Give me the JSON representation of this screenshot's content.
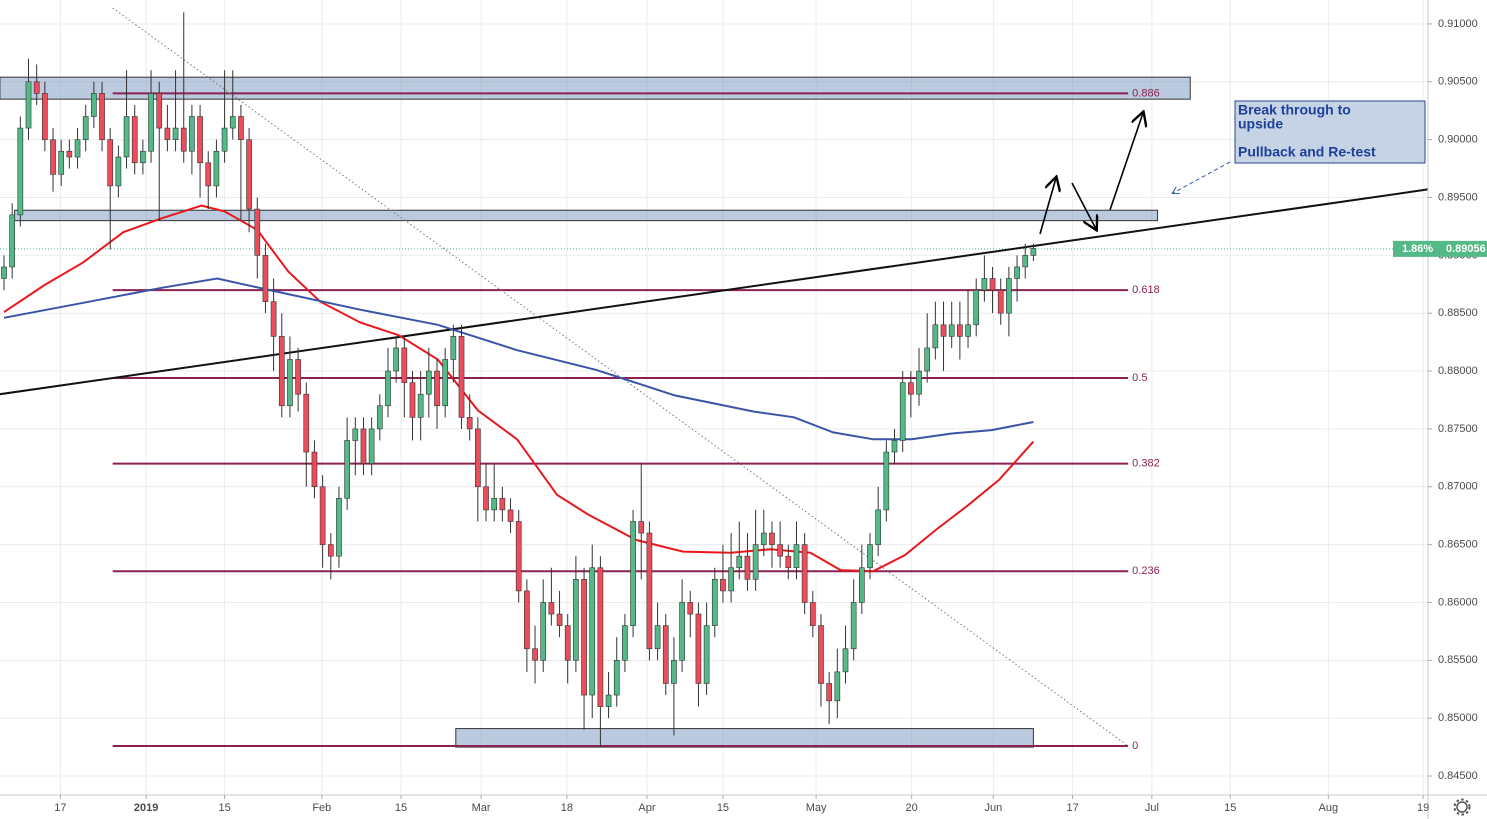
{
  "chart_data": {
    "type": "candlestick",
    "xlim": [
      -0.49,
      174.3
    ],
    "ylim": [
      0.84336,
      0.91207
    ],
    "grid": true,
    "up_color": "#53b987",
    "down_color": "#eb4d5c",
    "xticks": [
      {
        "value": 6.9,
        "label": "17"
      },
      {
        "value": 17.4,
        "label": "2019"
      },
      {
        "value": 27.0,
        "label": "15"
      },
      {
        "value": 38.9,
        "label": "Feb"
      },
      {
        "value": 48.6,
        "label": "15"
      },
      {
        "value": 58.4,
        "label": "Mar"
      },
      {
        "value": 68.9,
        "label": "18"
      },
      {
        "value": 78.7,
        "label": "Apr"
      },
      {
        "value": 88.0,
        "label": "15"
      },
      {
        "value": 99.4,
        "label": "May"
      },
      {
        "value": 111.1,
        "label": "20"
      },
      {
        "value": 121.1,
        "label": "Jun"
      },
      {
        "value": 130.8,
        "label": "17"
      },
      {
        "value": 140.5,
        "label": "Jul"
      },
      {
        "value": 150.1,
        "label": "15"
      },
      {
        "value": 162.1,
        "label": "Aug"
      },
      {
        "value": 173.7,
        "label": "19"
      }
    ],
    "yticks": [
      {
        "value": 0.91,
        "label": "0.91000"
      },
      {
        "value": 0.905,
        "label": "0.90500"
      },
      {
        "value": 0.9,
        "label": "0.90000"
      },
      {
        "value": 0.895,
        "label": "0.89500"
      },
      {
        "value": 0.89,
        "label": "0.89000"
      },
      {
        "value": 0.885,
        "label": "0.88500"
      },
      {
        "value": 0.88,
        "label": "0.88000"
      },
      {
        "value": 0.875,
        "label": "0.87500"
      },
      {
        "value": 0.87,
        "label": "0.87000"
      },
      {
        "value": 0.865,
        "label": "0.86500"
      },
      {
        "value": 0.86,
        "label": "0.86000"
      },
      {
        "value": 0.855,
        "label": "0.85500"
      },
      {
        "value": 0.85,
        "label": "0.85000"
      },
      {
        "value": 0.845,
        "label": "0.84500"
      }
    ],
    "candles": [
      [
        0.888,
        0.89,
        0.887,
        0.889
      ],
      [
        0.889,
        0.8945,
        0.888,
        0.8935
      ],
      [
        0.8935,
        0.902,
        0.8925,
        0.901
      ],
      [
        0.901,
        0.907,
        0.9,
        0.905
      ],
      [
        0.905,
        0.9065,
        0.903,
        0.904
      ],
      [
        0.904,
        0.905,
        0.899,
        0.9
      ],
      [
        0.9,
        0.901,
        0.8955,
        0.897
      ],
      [
        0.897,
        0.9,
        0.896,
        0.899
      ],
      [
        0.899,
        0.9,
        0.8975,
        0.8985
      ],
      [
        0.8985,
        0.901,
        0.8975,
        0.9
      ],
      [
        0.9,
        0.903,
        0.899,
        0.902
      ],
      [
        0.902,
        0.905,
        0.901,
        0.904
      ],
      [
        0.904,
        0.905,
        0.899,
        0.9
      ],
      [
        0.9,
        0.901,
        0.8905,
        0.896
      ],
      [
        0.896,
        0.8995,
        0.895,
        0.8985
      ],
      [
        0.8985,
        0.906,
        0.8975,
        0.902
      ],
      [
        0.902,
        0.903,
        0.897,
        0.898
      ],
      [
        0.898,
        0.9,
        0.897,
        0.899
      ],
      [
        0.899,
        0.906,
        0.898,
        0.904
      ],
      [
        0.904,
        0.905,
        0.893,
        0.901
      ],
      [
        0.901,
        0.903,
        0.899,
        0.9
      ],
      [
        0.9,
        0.906,
        0.899,
        0.901
      ],
      [
        0.901,
        0.911,
        0.898,
        0.899
      ],
      [
        0.899,
        0.903,
        0.897,
        0.902
      ],
      [
        0.902,
        0.903,
        0.895,
        0.898
      ],
      [
        0.898,
        0.899,
        0.894,
        0.896
      ],
      [
        0.896,
        0.9,
        0.895,
        0.899
      ],
      [
        0.899,
        0.906,
        0.898,
        0.901
      ],
      [
        0.901,
        0.906,
        0.9,
        0.902
      ],
      [
        0.902,
        0.903,
        0.893,
        0.9
      ],
      [
        0.9,
        0.901,
        0.892,
        0.894
      ],
      [
        0.894,
        0.895,
        0.888,
        0.89
      ],
      [
        0.89,
        0.891,
        0.885,
        0.886
      ],
      [
        0.886,
        0.888,
        0.88,
        0.883
      ],
      [
        0.883,
        0.885,
        0.876,
        0.877
      ],
      [
        0.877,
        0.883,
        0.876,
        0.881
      ],
      [
        0.881,
        0.882,
        0.8765,
        0.878
      ],
      [
        0.878,
        0.879,
        0.87,
        0.873
      ],
      [
        0.873,
        0.874,
        0.869,
        0.87
      ],
      [
        0.87,
        0.871,
        0.863,
        0.865
      ],
      [
        0.865,
        0.866,
        0.862,
        0.864
      ],
      [
        0.864,
        0.87,
        0.863,
        0.869
      ],
      [
        0.869,
        0.876,
        0.868,
        0.874
      ],
      [
        0.874,
        0.876,
        0.871,
        0.875
      ],
      [
        0.875,
        0.876,
        0.871,
        0.872
      ],
      [
        0.872,
        0.876,
        0.871,
        0.875
      ],
      [
        0.875,
        0.878,
        0.874,
        0.877
      ],
      [
        0.877,
        0.882,
        0.876,
        0.88
      ],
      [
        0.88,
        0.883,
        0.879,
        0.882
      ],
      [
        0.882,
        0.883,
        0.876,
        0.879
      ],
      [
        0.879,
        0.88,
        0.874,
        0.876
      ],
      [
        0.876,
        0.88,
        0.874,
        0.878
      ],
      [
        0.878,
        0.882,
        0.876,
        0.88
      ],
      [
        0.88,
        0.881,
        0.875,
        0.877
      ],
      [
        0.877,
        0.882,
        0.876,
        0.881
      ],
      [
        0.881,
        0.884,
        0.879,
        0.883
      ],
      [
        0.883,
        0.884,
        0.875,
        0.876
      ],
      [
        0.876,
        0.878,
        0.874,
        0.875
      ],
      [
        0.875,
        0.876,
        0.867,
        0.87
      ],
      [
        0.87,
        0.872,
        0.867,
        0.868
      ],
      [
        0.868,
        0.872,
        0.867,
        0.869
      ],
      [
        0.869,
        0.87,
        0.867,
        0.868
      ],
      [
        0.868,
        0.869,
        0.866,
        0.867
      ],
      [
        0.867,
        0.868,
        0.86,
        0.861
      ],
      [
        0.861,
        0.862,
        0.854,
        0.856
      ],
      [
        0.856,
        0.858,
        0.853,
        0.855
      ],
      [
        0.855,
        0.862,
        0.854,
        0.86
      ],
      [
        0.86,
        0.863,
        0.858,
        0.859
      ],
      [
        0.859,
        0.861,
        0.857,
        0.858
      ],
      [
        0.858,
        0.859,
        0.853,
        0.855
      ],
      [
        0.855,
        0.864,
        0.854,
        0.862
      ],
      [
        0.862,
        0.863,
        0.849,
        0.852
      ],
      [
        0.852,
        0.865,
        0.85,
        0.863
      ],
      [
        0.863,
        0.864,
        0.8475,
        0.851
      ],
      [
        0.851,
        0.854,
        0.85,
        0.852
      ],
      [
        0.852,
        0.857,
        0.851,
        0.855
      ],
      [
        0.855,
        0.859,
        0.854,
        0.858
      ],
      [
        0.858,
        0.868,
        0.857,
        0.867
      ],
      [
        0.867,
        0.872,
        0.862,
        0.866
      ],
      [
        0.866,
        0.867,
        0.855,
        0.856
      ],
      [
        0.856,
        0.86,
        0.855,
        0.858
      ],
      [
        0.858,
        0.859,
        0.852,
        0.853
      ],
      [
        0.853,
        0.857,
        0.8485,
        0.855
      ],
      [
        0.855,
        0.862,
        0.854,
        0.86
      ],
      [
        0.86,
        0.861,
        0.857,
        0.859
      ],
      [
        0.859,
        0.86,
        0.851,
        0.853
      ],
      [
        0.853,
        0.86,
        0.852,
        0.858
      ],
      [
        0.858,
        0.863,
        0.857,
        0.862
      ],
      [
        0.862,
        0.865,
        0.86,
        0.861
      ],
      [
        0.861,
        0.866,
        0.86,
        0.863
      ],
      [
        0.863,
        0.867,
        0.862,
        0.864
      ],
      [
        0.864,
        0.866,
        0.861,
        0.862
      ],
      [
        0.862,
        0.868,
        0.861,
        0.865
      ],
      [
        0.865,
        0.868,
        0.864,
        0.866
      ],
      [
        0.866,
        0.867,
        0.863,
        0.865
      ],
      [
        0.865,
        0.867,
        0.863,
        0.864
      ],
      [
        0.864,
        0.865,
        0.862,
        0.863
      ],
      [
        0.863,
        0.867,
        0.862,
        0.865
      ],
      [
        0.865,
        0.866,
        0.859,
        0.86
      ],
      [
        0.86,
        0.861,
        0.857,
        0.858
      ],
      [
        0.858,
        0.859,
        0.851,
        0.853
      ],
      [
        0.853,
        0.854,
        0.8495,
        0.8515
      ],
      [
        0.8515,
        0.856,
        0.85,
        0.854
      ],
      [
        0.854,
        0.858,
        0.853,
        0.856
      ],
      [
        0.856,
        0.862,
        0.855,
        0.86
      ],
      [
        0.86,
        0.865,
        0.859,
        0.863
      ],
      [
        0.863,
        0.866,
        0.862,
        0.865
      ],
      [
        0.865,
        0.87,
        0.864,
        0.868
      ],
      [
        0.868,
        0.874,
        0.867,
        0.873
      ],
      [
        0.873,
        0.875,
        0.872,
        0.874
      ],
      [
        0.874,
        0.88,
        0.873,
        0.879
      ],
      [
        0.879,
        0.88,
        0.876,
        0.878
      ],
      [
        0.878,
        0.882,
        0.877,
        0.88
      ],
      [
        0.88,
        0.885,
        0.879,
        0.882
      ],
      [
        0.882,
        0.886,
        0.881,
        0.884
      ],
      [
        0.884,
        0.886,
        0.88,
        0.883
      ],
      [
        0.883,
        0.886,
        0.882,
        0.884
      ],
      [
        0.884,
        0.886,
        0.881,
        0.883
      ],
      [
        0.883,
        0.887,
        0.882,
        0.884
      ],
      [
        0.884,
        0.888,
        0.883,
        0.887
      ],
      [
        0.887,
        0.89,
        0.886,
        0.888
      ],
      [
        0.888,
        0.889,
        0.885,
        0.887
      ],
      [
        0.887,
        0.888,
        0.884,
        0.885
      ],
      [
        0.885,
        0.889,
        0.883,
        0.888
      ],
      [
        0.888,
        0.89,
        0.886,
        0.889
      ],
      [
        0.889,
        0.891,
        0.888,
        0.89
      ],
      [
        0.89,
        0.891,
        0.8895,
        0.8906
      ]
    ],
    "series": [
      {
        "color": "#e8181c",
        "x": [
          0,
          4.9,
          9.7,
          14.6,
          19.3,
          24.2,
          27,
          31,
          34.8,
          38.7,
          43.6,
          48.3,
          53.1,
          58,
          62.8,
          67.7,
          71.5,
          77.4,
          83.1,
          89,
          93.8,
          98.7,
          102.4,
          106.4,
          110.3,
          114.1,
          118,
          121.8,
          126
        ],
        "values": [
          0.8851,
          0.8874,
          0.8894,
          0.892,
          0.8932,
          0.8943,
          0.8938,
          0.8922,
          0.8886,
          0.886,
          0.8842,
          0.8831,
          0.881,
          0.8766,
          0.8741,
          0.8693,
          0.8676,
          0.8654,
          0.8644,
          0.8643,
          0.8646,
          0.8643,
          0.8628,
          0.8627,
          0.8641,
          0.8663,
          0.8684,
          0.8706,
          0.8739
        ]
      },
      {
        "color": "#3a55a8",
        "x": [
          0,
          9.7,
          19.3,
          26.1,
          33.8,
          43.6,
          53.1,
          62.8,
          72.5,
          82.1,
          91.8,
          96.7,
          101.5,
          106.4,
          111.1,
          116,
          120.9,
          126
        ],
        "values": [
          0.8846,
          0.8859,
          0.8872,
          0.888,
          0.8868,
          0.8853,
          0.884,
          0.8818,
          0.8801,
          0.8779,
          0.8765,
          0.876,
          0.8747,
          0.8741,
          0.8741,
          0.8746,
          0.8749,
          0.8756
        ]
      }
    ],
    "fib_range": [
      13.3,
      137.6
    ],
    "fib_color": "#8b2252",
    "fib_levels": [
      {
        "label": "0.886",
        "value": 0.904
      },
      {
        "label": "0.618",
        "value": 0.887
      },
      {
        "label": "0.5",
        "value": 0.8794
      },
      {
        "label": "0.382",
        "value": 0.872
      },
      {
        "label": "0.236",
        "value": 0.8627
      },
      {
        "label": "0",
        "value": 0.8476
      }
    ],
    "zones": [
      {
        "x": [
          -0.5,
          145.2
        ],
        "y": [
          0.9035,
          0.9054
        ]
      },
      {
        "x": [
          1.3,
          141.2
        ],
        "y": [
          0.893,
          0.8939
        ]
      },
      {
        "x": [
          55.3,
          126
        ],
        "y": [
          0.8475,
          0.8491
        ]
      }
    ],
    "lines": [
      {
        "x": [
          -0.5,
          174.3
        ],
        "y": [
          0.878,
          0.8957
        ],
        "color": "#111111",
        "style": "solid"
      },
      {
        "x": [
          13.3,
          137.6
        ],
        "y": [
          0.91138,
          0.8476
        ],
        "color": "#777777",
        "style": "dotted"
      }
    ],
    "last_price": 0.89056,
    "last_change": "1.86%",
    "annotation": [
      "Break through to",
      "upside",
      "Pullback and Re-test"
    ]
  }
}
